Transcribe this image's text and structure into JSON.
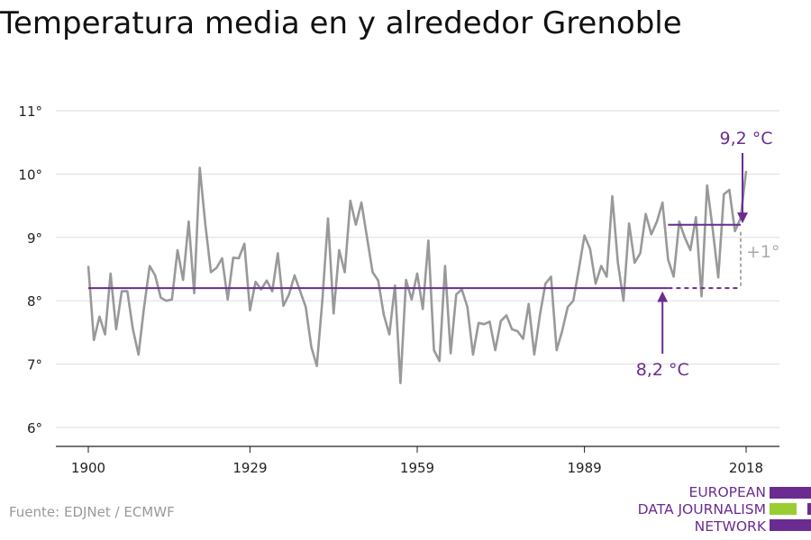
{
  "title": "Temperatura media en y alrededor Grenoble",
  "source": "Fuente: EDJNet / ECMWF",
  "logo": {
    "line1": "EUROPEAN",
    "line2": "DATA JOURNALISM",
    "line3": "NETWORK"
  },
  "colors": {
    "purple": "#6a2c91",
    "line": "#999999",
    "green": "#9acd32",
    "grid": "#dddddd"
  },
  "chart_data": {
    "type": "line",
    "xticks": [
      1900,
      1929,
      1959,
      1989,
      2018
    ],
    "yticks": [
      6,
      7,
      8,
      9,
      10,
      11
    ],
    "ytick_labels": [
      "6°",
      "7°",
      "8°",
      "9°",
      "10°",
      "11°"
    ],
    "xlim": [
      1900,
      2018
    ],
    "ylim": [
      5.7,
      11.2
    ],
    "series": [
      {
        "x": [
          1900,
          1901,
          1902,
          1903,
          1904,
          1905,
          1906,
          1907,
          1908,
          1909,
          1910,
          1911,
          1912,
          1913,
          1914,
          1915,
          1916,
          1917,
          1918,
          1919,
          1920,
          1921,
          1922,
          1923,
          1924,
          1925,
          1926,
          1927,
          1928,
          1929,
          1930,
          1931,
          1932,
          1933,
          1934,
          1935,
          1936,
          1937,
          1938,
          1939,
          1940,
          1941,
          1942,
          1943,
          1944,
          1945,
          1946,
          1947,
          1948,
          1949,
          1950,
          1951,
          1952,
          1953,
          1954,
          1955,
          1956,
          1957,
          1958,
          1959,
          1960,
          1961,
          1962,
          1963,
          1964,
          1965,
          1966,
          1967,
          1968,
          1969,
          1970,
          1971,
          1972,
          1973,
          1974,
          1975,
          1976,
          1977,
          1978,
          1979,
          1980,
          1981,
          1982,
          1983,
          1984,
          1985,
          1986,
          1987,
          1988,
          1989,
          1990,
          1991,
          1992,
          1993,
          1994,
          1995,
          1996,
          1997,
          1998,
          1999,
          2000,
          2001,
          2002,
          2003,
          2004,
          2005,
          2006,
          2007,
          2008,
          2009,
          2010,
          2011,
          2012,
          2013,
          2014,
          2015,
          2016,
          2017,
          2018
        ],
        "values": [
          8.55,
          7.38,
          7.75,
          7.47,
          8.43,
          7.55,
          8.15,
          8.15,
          7.55,
          7.15,
          7.9,
          8.55,
          8.4,
          8.05,
          8.0,
          8.02,
          8.8,
          8.33,
          9.25,
          8.12,
          10.1,
          9.2,
          8.45,
          8.52,
          8.67,
          8.02,
          8.68,
          8.67,
          8.9,
          7.85,
          8.3,
          8.18,
          8.32,
          8.15,
          8.75,
          7.92,
          8.1,
          8.4,
          8.15,
          7.9,
          7.27,
          6.97,
          8.02,
          9.3,
          7.8,
          8.8,
          8.45,
          9.58,
          9.2,
          9.55,
          9.0,
          8.45,
          8.32,
          7.78,
          7.47,
          8.24,
          6.7,
          8.33,
          8.02,
          8.43,
          7.87,
          8.95,
          7.22,
          7.05,
          8.55,
          7.17,
          8.1,
          8.18,
          7.9,
          7.15,
          7.65,
          7.63,
          7.67,
          7.22,
          7.68,
          7.77,
          7.55,
          7.52,
          7.4,
          7.95,
          7.15,
          7.77,
          8.27,
          8.38,
          7.22,
          7.52,
          7.9,
          8.0,
          8.5,
          9.03,
          8.82,
          8.27,
          8.55,
          8.38,
          9.65,
          8.6,
          8.0,
          9.22,
          8.6,
          8.75,
          9.37,
          9.05,
          9.25,
          9.55,
          8.65,
          8.38,
          9.25,
          9.0,
          8.8,
          9.32,
          8.07,
          9.82,
          9.13,
          8.37,
          9.68,
          9.75,
          9.1,
          9.3,
          10.05
        ]
      }
    ],
    "annotations": {
      "baseline_value": 8.2,
      "baseline_label": "8,2 °C",
      "baseline_x": [
        1900,
        2018
      ],
      "recent_value": 9.2,
      "recent_label": "9,2 °C",
      "recent_x": [
        2004,
        2018
      ],
      "difference_label": "+1°"
    }
  }
}
